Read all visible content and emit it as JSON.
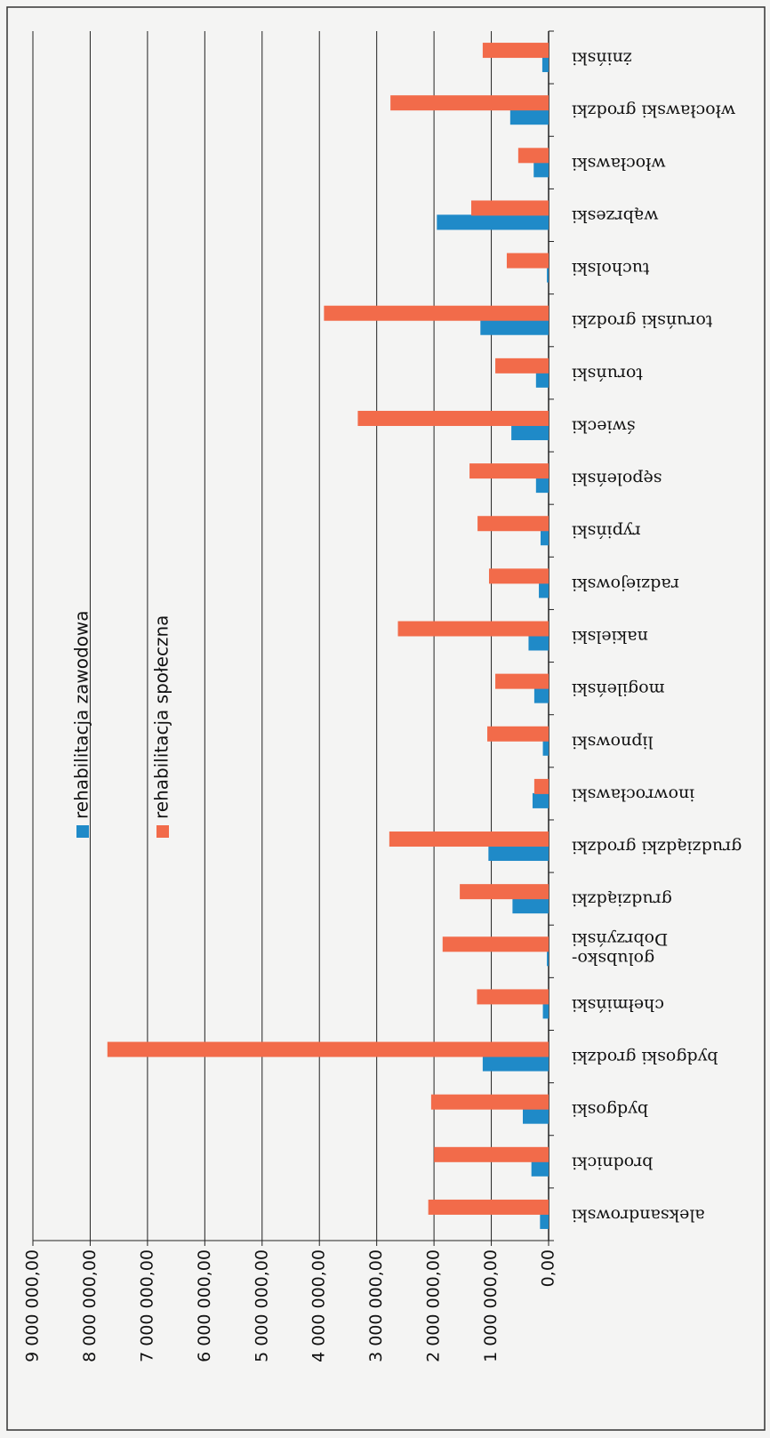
{
  "chart_data": {
    "type": "bar",
    "categories": [
      "aleksandrowski",
      "brodnicki",
      "bydgoski",
      "bydgoski grodzki",
      "chełmiński",
      "golubsko-Dobrzyński",
      "grudziądzki",
      "grudziądzki grodzki",
      "inowrocławski",
      "lipnowski",
      "mogileński",
      "nakielski",
      "radziejowski",
      "rypiński",
      "sępoleński",
      "świecki",
      "toruński",
      "toruński grodzki",
      "tucholski",
      "wąbrzeski",
      "włocławski",
      "włocławski grodzki",
      "żniński"
    ],
    "series": [
      {
        "name": "rehabilitacja zawodowa",
        "color": "#1f8ac8",
        "values": [
          150000,
          300000,
          450000,
          1150000,
          100000,
          30000,
          630000,
          1050000,
          280000,
          100000,
          250000,
          350000,
          170000,
          140000,
          220000,
          650000,
          220000,
          1190000,
          30000,
          1950000,
          260000,
          670000,
          110000
        ]
      },
      {
        "name": "rehabilitacja społeczna",
        "color": "#f26b4a",
        "values": [
          2100000,
          2000000,
          2050000,
          7700000,
          1250000,
          1850000,
          1550000,
          2780000,
          250000,
          1070000,
          930000,
          2630000,
          1040000,
          1240000,
          1380000,
          3330000,
          930000,
          3920000,
          730000,
          1350000,
          530000,
          2760000,
          1150000
        ]
      }
    ],
    "ylim": [
      0,
      9000000
    ],
    "yticks": [
      {
        "value": 0,
        "label": "0,00"
      },
      {
        "value": 1000000,
        "label": "1 000 000,00"
      },
      {
        "value": 2000000,
        "label": "2 000 000,00"
      },
      {
        "value": 3000000,
        "label": "3 000 000,00"
      },
      {
        "value": 4000000,
        "label": "4 000 000,00"
      },
      {
        "value": 5000000,
        "label": "5 000 000,00"
      },
      {
        "value": 6000000,
        "label": "6 000 000,00"
      },
      {
        "value": 7000000,
        "label": "7 000 000,00"
      },
      {
        "value": 8000000,
        "label": "8 000 000,00"
      },
      {
        "value": 9000000,
        "label": "9 000 000,00"
      }
    ],
    "grid": true,
    "legend": "left"
  }
}
